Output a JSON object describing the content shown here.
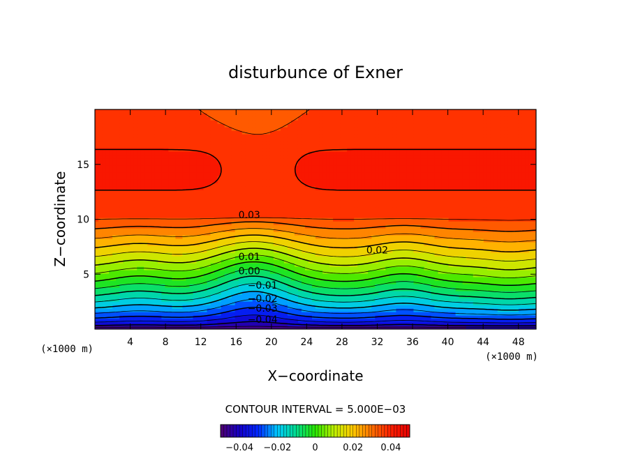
{
  "chart_data": {
    "type": "heatmap",
    "title": "disturbunce of Exner",
    "xlabel": "X−coordinate",
    "ylabel": "Z−coordinate",
    "x_unit_left": "(×1000 m)",
    "x_unit_right": "(×1000 m)",
    "xlim": [
      0,
      50
    ],
    "ylim": [
      0,
      20
    ],
    "xticks": [
      4,
      8,
      12,
      16,
      20,
      24,
      28,
      32,
      36,
      40,
      44,
      48
    ],
    "xtick_labels": [
      "4",
      "8",
      "12",
      "16",
      "20",
      "24",
      "28",
      "32",
      "36",
      "40",
      "44",
      "48"
    ],
    "yticks": [
      5,
      10,
      15
    ],
    "ytick_labels": [
      "5",
      "10",
      "15"
    ],
    "contour_interval_text": "CONTOUR INTERVAL = 5.000E−03",
    "contour_interval": 0.005,
    "value_range": [
      -0.05,
      0.05
    ],
    "contour_labels": [
      {
        "text": "0.03",
        "x": 17.5,
        "z": 10.4
      },
      {
        "text": "0.02",
        "x": 32,
        "z": 7.2
      },
      {
        "text": "0.01",
        "x": 17.5,
        "z": 6.6
      },
      {
        "text": "0.00",
        "x": 17.5,
        "z": 5.3
      },
      {
        "text": "−0.01",
        "x": 19,
        "z": 4.0
      },
      {
        "text": "−0.02",
        "x": 19,
        "z": 2.8
      },
      {
        "text": "−0.03",
        "x": 19,
        "z": 1.9
      },
      {
        "text": "−0.04",
        "x": 19,
        "z": 0.9
      }
    ],
    "colorbar": {
      "ticks": [
        -0.04,
        -0.02,
        0,
        0.02,
        0.04
      ],
      "tick_labels": [
        "−0.04",
        "−0.02",
        "0",
        "0.02",
        "0.04"
      ],
      "min": -0.05,
      "max": 0.05
    }
  }
}
